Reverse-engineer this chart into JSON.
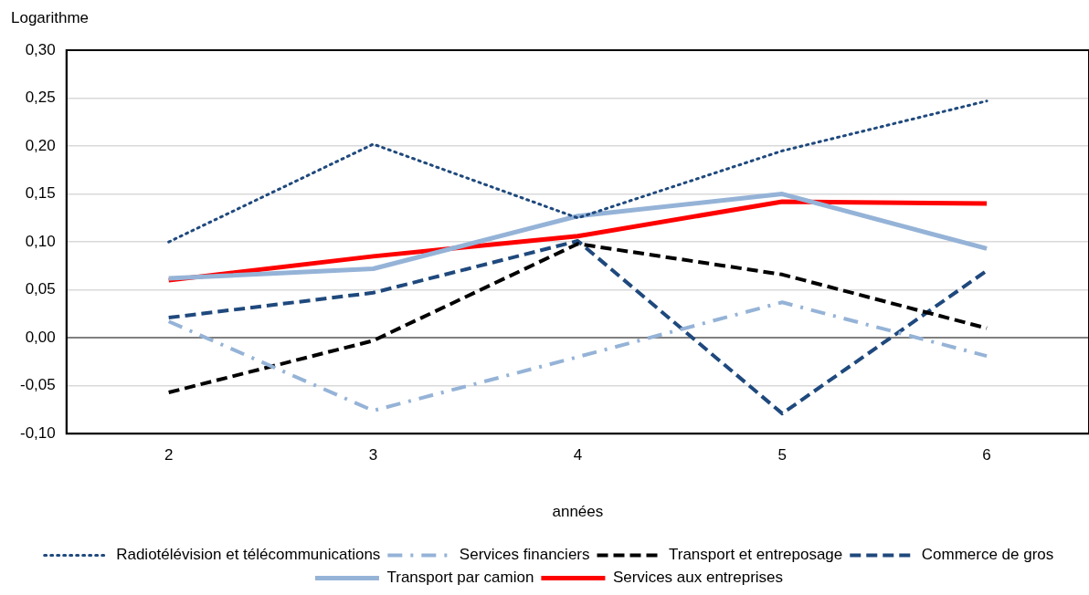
{
  "chart_data": {
    "type": "line",
    "ylabel": "Logarithme",
    "xlabel": "années",
    "categories": [
      "2",
      "3",
      "4",
      "5",
      "6"
    ],
    "ylim": [
      -0.1,
      0.3
    ],
    "yticks": [
      {
        "value": -0.1,
        "label": "-0,10"
      },
      {
        "value": -0.05,
        "label": "-0,05"
      },
      {
        "value": 0,
        "label": "0,00"
      },
      {
        "value": 0.05,
        "label": "0,05"
      },
      {
        "value": 0.1,
        "label": "0,10"
      },
      {
        "value": 0.15,
        "label": "0,15"
      },
      {
        "value": 0.2,
        "label": "0,20"
      },
      {
        "value": 0.25,
        "label": "0,25"
      },
      {
        "value": 0.3,
        "label": "0,30"
      }
    ],
    "grid": "y",
    "legend": "bottom",
    "marker": "none",
    "series": [
      {
        "name": "Radiotélévision et télécommunications",
        "color": "#1f497d",
        "line_style": "dotted",
        "values": [
          0.1,
          0.202,
          0.125,
          0.195,
          0.247
        ]
      },
      {
        "name": "Services financiers",
        "color": "#95b3d7",
        "line_style": "dashdot",
        "values": [
          0.017,
          -0.076,
          -0.02,
          0.037,
          -0.019
        ]
      },
      {
        "name": "Transport et entreposage",
        "color": "#000000",
        "line_style": "dashed",
        "values": [
          -0.057,
          -0.003,
          0.098,
          0.066,
          0.01
        ]
      },
      {
        "name": "Commerce de gros",
        "color": "#1f497d",
        "line_style": "dashed",
        "values": [
          0.021,
          0.047,
          0.101,
          -0.079,
          0.07
        ]
      },
      {
        "name": "Transport par camion",
        "color": "#95b3d7",
        "line_style": "solid",
        "values": [
          0.062,
          0.072,
          0.127,
          0.15,
          0.093
        ]
      },
      {
        "name": "Services aux entreprises",
        "color": "#ff0000",
        "line_style": "solid",
        "values": [
          0.06,
          0.085,
          0.106,
          0.142,
          0.14
        ]
      }
    ]
  }
}
